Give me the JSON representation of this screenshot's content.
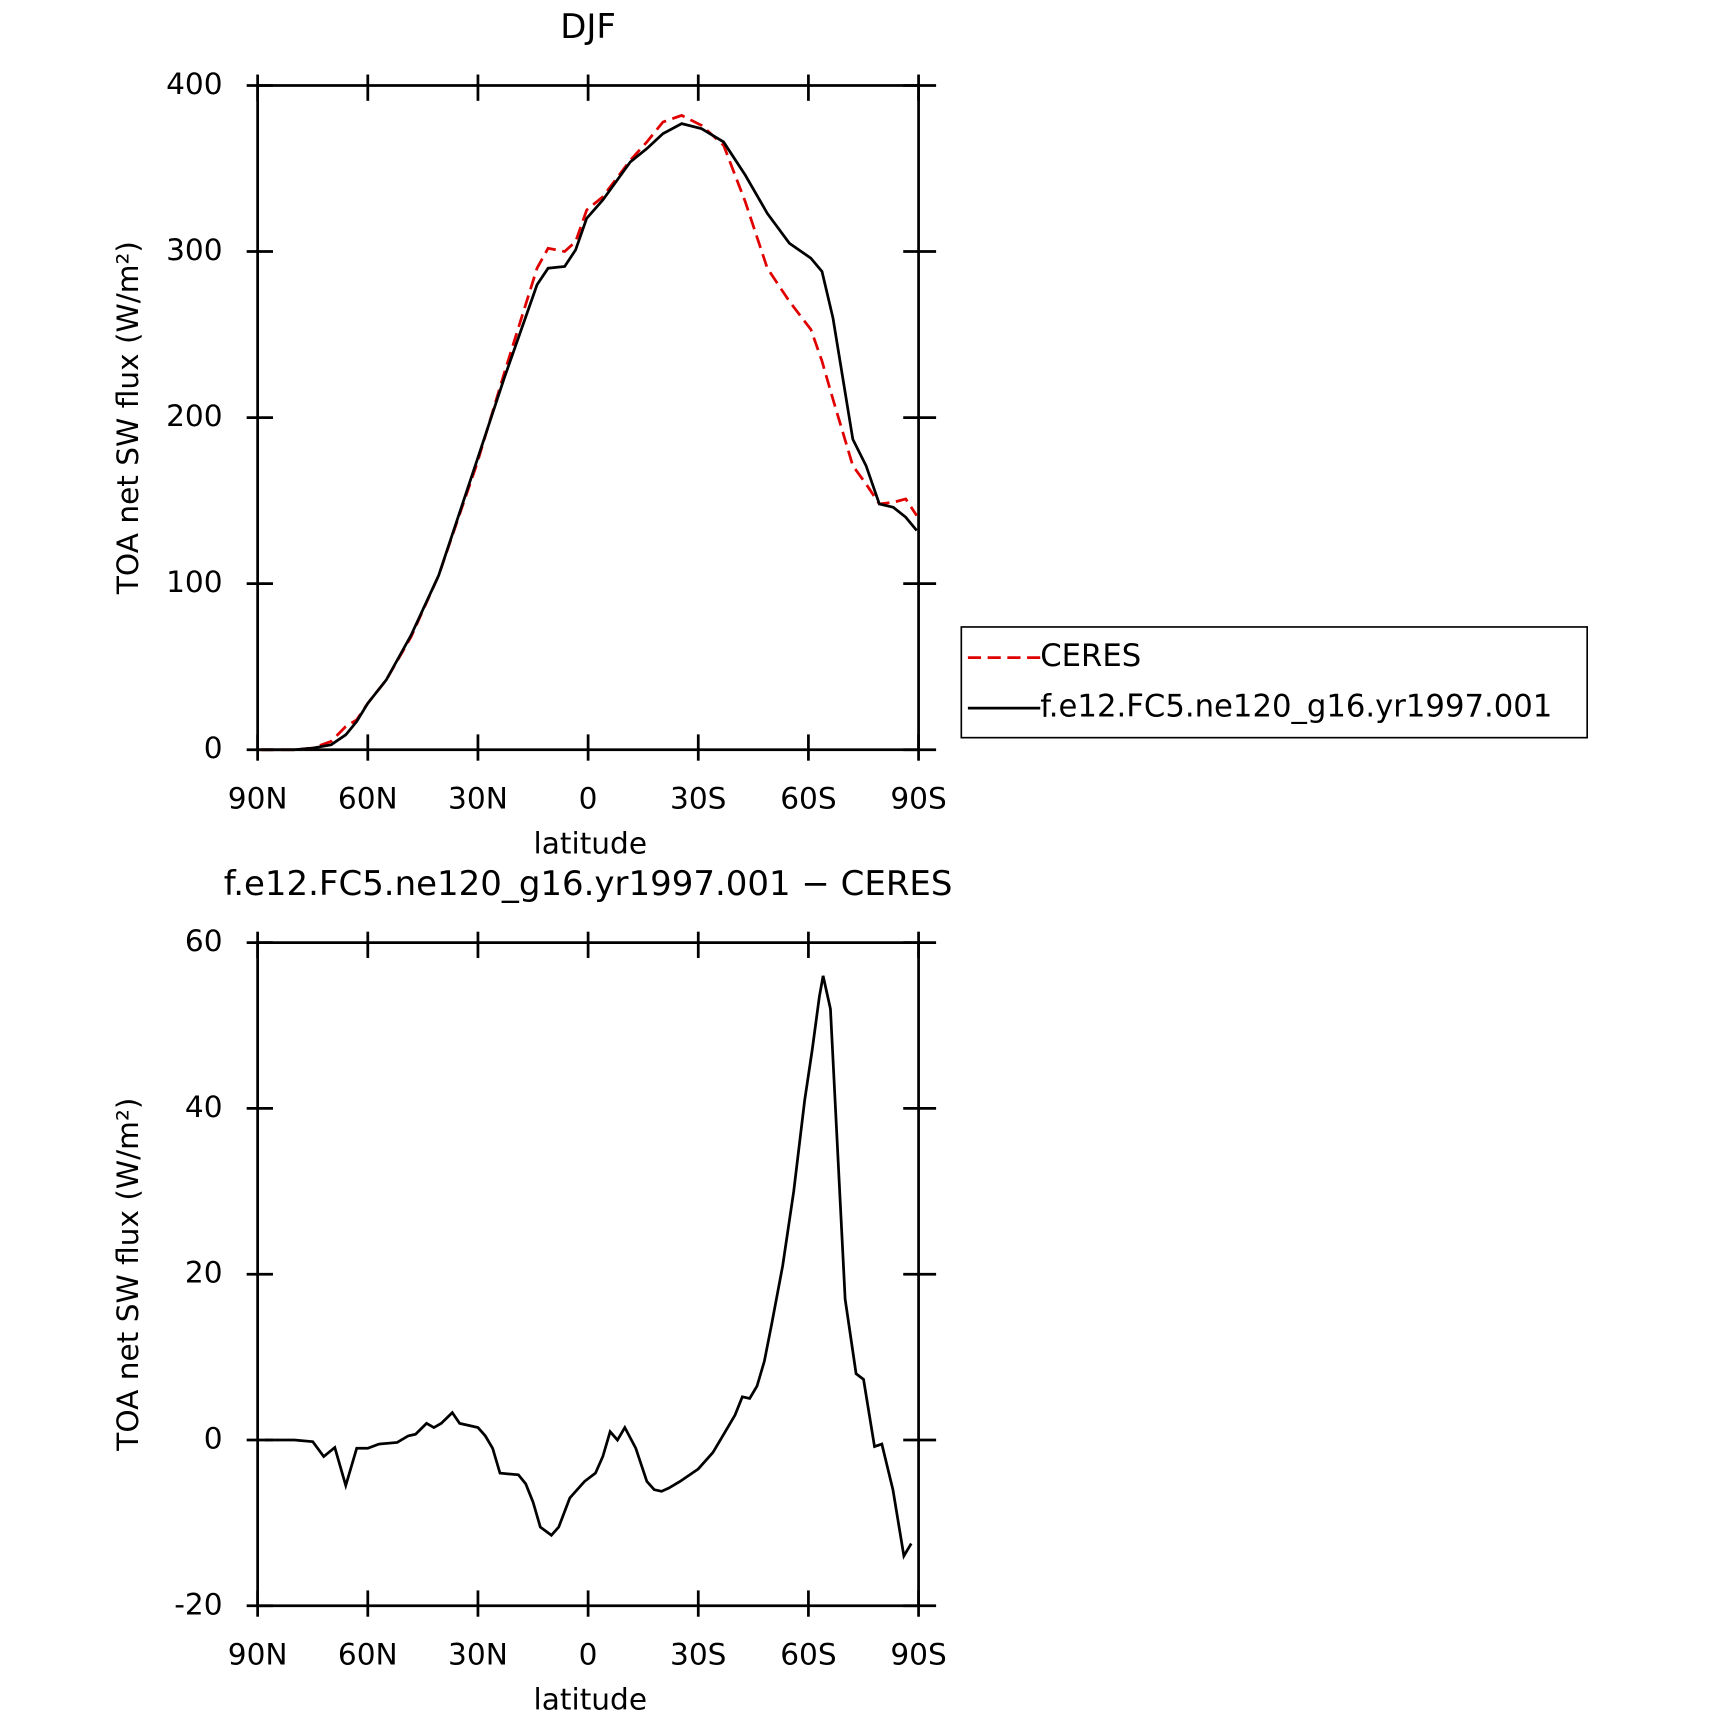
{
  "chart_data": [
    {
      "type": "line",
      "title": "DJF",
      "x_label": "latitude",
      "y_label": "TOA net SW flux (W/m²)",
      "x": [
        89,
        80,
        75,
        70,
        66,
        63,
        60,
        55,
        48.2,
        40.7,
        30.3,
        22.8,
        13.9,
        10.9,
        6.4,
        3.4,
        0.4,
        -4,
        -11.5,
        -16,
        -20.4,
        -25.5,
        -30.9,
        -36.9,
        -42.8,
        -48.8,
        -54.8,
        -60.7,
        -63.7,
        -66.7,
        -72.1,
        -75.7,
        -79.3,
        -83.1,
        -86.5,
        -89.5
      ],
      "series": [
        {
          "name": "CERES",
          "color": "#e00000",
          "dash": true,
          "values": [
            0,
            0,
            1,
            5,
            14,
            18,
            28,
            42,
            68,
            105,
            172,
            227,
            290,
            302,
            300,
            306,
            325,
            333,
            355,
            366,
            378,
            382,
            376,
            364,
            330,
            290,
            270,
            253,
            234,
            211,
            171,
            160,
            148,
            149,
            151,
            141
          ]
        },
        {
          "name": "f.e12.FC5.ne120_g16.yr1997.001",
          "color": "#000000",
          "dash": false,
          "values": [
            0,
            0,
            1,
            3,
            9,
            17,
            28,
            42,
            69,
            105,
            174,
            224,
            280,
            290,
            291,
            301,
            320,
            331,
            354,
            362,
            371,
            377,
            374,
            366,
            346,
            323,
            305,
            296,
            288,
            260,
            187,
            171,
            148,
            146,
            140,
            132
          ]
        }
      ],
      "xlim": [
        90,
        -90
      ],
      "xticks": [
        {
          "value": 90,
          "label": "90N"
        },
        {
          "value": 60,
          "label": "60N"
        },
        {
          "value": 30,
          "label": "30N"
        },
        0,
        {
          "value": -30,
          "label": "30S"
        },
        {
          "value": -60,
          "label": "60S"
        },
        {
          "value": -90,
          "label": "90S"
        }
      ],
      "ylim": [
        0,
        400
      ],
      "yticks": [
        0,
        100,
        200,
        300,
        400
      ],
      "legend": "right"
    },
    {
      "type": "line",
      "title": "f.e12.FC5.ne120_g16.yr1997.001 − CERES",
      "x_label": "latitude",
      "y_label": "TOA net SW flux (W/m²)",
      "x": [
        88,
        80,
        75,
        72,
        69,
        66,
        63,
        60,
        57,
        52,
        49,
        47,
        44,
        42,
        40,
        37,
        35,
        30,
        28,
        26,
        24,
        19,
        17,
        15,
        13,
        10,
        8,
        5,
        1,
        -2,
        -4,
        -6,
        -8,
        -10,
        -13,
        -16,
        -18,
        -20,
        -22,
        -25,
        -30,
        -34,
        -36,
        -40,
        -42,
        -44,
        -46,
        -48,
        -50,
        -53,
        -56,
        -59,
        -61,
        -63,
        -64,
        -66,
        -70,
        -73,
        -75,
        -78,
        -80,
        -83,
        -86,
        -88
      ],
      "values": [
        0,
        0,
        -0.2,
        -2,
        -0.9,
        -5.5,
        -1,
        -1,
        -0.5,
        -0.3,
        0.5,
        0.7,
        2,
        1.5,
        2,
        3.3,
        2,
        1.5,
        0.5,
        -1,
        -4,
        -4.2,
        -5.3,
        -7.5,
        -10.5,
        -11.5,
        -10.5,
        -7,
        -5,
        -4,
        -2,
        1,
        0,
        1.5,
        -1,
        -5,
        -6,
        -6.2,
        -5.8,
        -5,
        -3.5,
        -1.5,
        0,
        3,
        5.2,
        5,
        6.5,
        9.5,
        14,
        21,
        30,
        41,
        47,
        53.5,
        56,
        52,
        17,
        8,
        7.3,
        -0.8,
        -0.5,
        -6,
        -14,
        -12.5
      ],
      "color": "#000000",
      "xlim": [
        90,
        -90
      ],
      "xticks": [
        {
          "value": 90,
          "label": "90N"
        },
        {
          "value": 60,
          "label": "60N"
        },
        {
          "value": 30,
          "label": "30N"
        },
        0,
        {
          "value": -30,
          "label": "30S"
        },
        {
          "value": -60,
          "label": "60S"
        },
        {
          "value": -90,
          "label": "90S"
        }
      ],
      "ylim": [
        -20,
        60
      ],
      "yticks": [
        -20,
        0,
        20,
        40,
        60
      ]
    }
  ]
}
